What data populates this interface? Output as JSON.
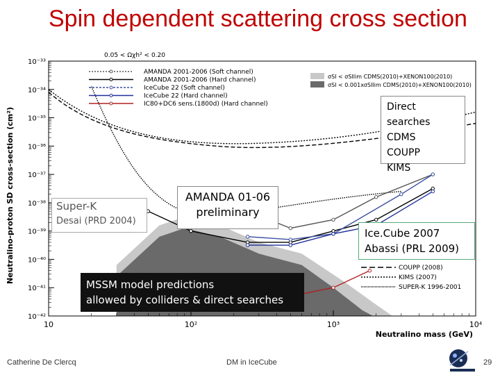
{
  "slide": {
    "title": "Spin dependent scattering cross section",
    "footer_left": "Catherine De Clercq",
    "footer_center": "DM in IceCube",
    "page_number": "29"
  },
  "chart_data": {
    "type": "line",
    "title": "",
    "xlabel": "Neutralino mass (GeV)",
    "ylabel": "Neutralino-proton SD cross-section (cm²)",
    "xscale": "log",
    "yscale": "log",
    "xlim": [
      10,
      10000
    ],
    "ylim": [
      1e-42,
      1e-33
    ],
    "x_tick_labels": [
      "10",
      "10²",
      "10³",
      "10⁴"
    ],
    "y_tick_labels": [
      "10⁻³³",
      "10⁻³⁴",
      "10⁻³⁵",
      "10⁻³⁶",
      "10⁻³⁷",
      "10⁻³⁸",
      "10⁻³⁹",
      "10⁻⁴⁰",
      "10⁻⁴¹",
      "10⁻⁴²"
    ],
    "header_note": "0.05 < Ωχh² < 0.20",
    "legend_left": [
      {
        "label": "AMANDA 2001-2006 (Soft channel)",
        "color": "#555555"
      },
      {
        "label": "AMANDA 2001-2006 (Hard channel)",
        "color": "#000000"
      },
      {
        "label": "IceCube 22 (Soft channel)",
        "color": "#3a4fa0"
      },
      {
        "label": "IceCube 22 (Hard channel)",
        "color": "#1f2f9a"
      },
      {
        "label": "IC80+DC6 sens.(1800d) (Hard channel)",
        "color": "#b02020"
      }
    ],
    "legend_right": [
      {
        "label": "σSI < σSIlim CDMS(2010)+XENON100(2010)",
        "color": "#c8c8c8"
      },
      {
        "label": "σSI < 0.001xσSIlim CDMS(2010)+XENON100(2010)",
        "color": "#6a6a6a"
      }
    ],
    "legend_lower": [
      {
        "label": "COUPP (2008)",
        "style": "dashed"
      },
      {
        "label": "KIMS (2007)",
        "style": "dotted"
      },
      {
        "label": "SUPER-K 1996-2001",
        "style": "dense-dotted"
      }
    ],
    "series": [
      {
        "name": "AMANDA 2001-2006 (Soft channel)",
        "color": "#555555",
        "x": [
          250,
          500,
          1000,
          2000,
          5000
        ],
        "y": [
          -38.3,
          -38.9,
          -38.6,
          -37.8,
          -37.0
        ]
      },
      {
        "name": "AMANDA 2001-2006 (Hard channel)",
        "color": "#000000",
        "x": [
          50,
          100,
          250,
          500,
          1000,
          2000,
          5000
        ],
        "y": [
          -38.3,
          -39.0,
          -39.4,
          -39.4,
          -39.0,
          -38.6,
          -37.5
        ]
      },
      {
        "name": "IceCube 22 (Soft channel)",
        "color": "#3a4fa0",
        "x": [
          250,
          500,
          1000,
          3000,
          5000
        ],
        "y": [
          -39.2,
          -39.3,
          -39.1,
          -37.7,
          -37.0
        ]
      },
      {
        "name": "IceCube 22 (Hard channel)",
        "color": "#1f2f9a",
        "x": [
          250,
          500,
          1000,
          2000,
          5000
        ],
        "y": [
          -39.5,
          -39.5,
          -39.1,
          -38.8,
          -37.6
        ]
      },
      {
        "name": "IC80+DC6 sens.(1800d) (Hard channel)",
        "color": "#b02020",
        "x": [
          250,
          500,
          1000,
          1800
        ],
        "y": [
          -41.5,
          -41.3,
          -41.0,
          -40.4
        ]
      }
    ]
  },
  "annotations": {
    "direct": [
      "Direct searches",
      "CDMS",
      "COUPP",
      "KIMS"
    ],
    "superk_line1": "Super-K",
    "superk_line2": "Desai (PRD 2004)",
    "amanda_line1": "AMANDA 01-06",
    "amanda_line2": "preliminary",
    "icecube_line1": "Ice.Cube 2007",
    "icecube_line2": "Abassi  (PRL 2009)",
    "mssm_line1": "MSSM model predictions",
    "mssm_line2": "allowed by colliders & direct searches"
  }
}
